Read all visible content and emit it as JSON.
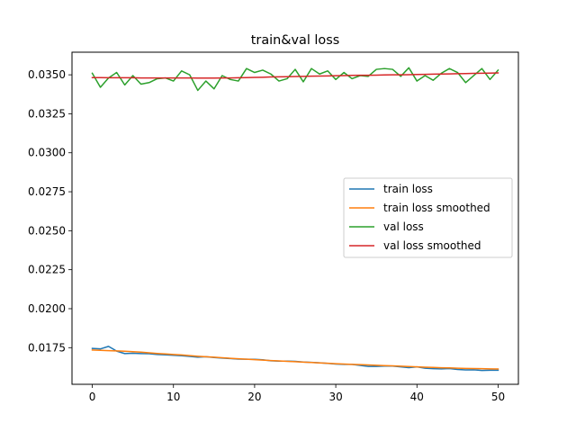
{
  "chart_data": {
    "type": "line",
    "title": "train&val loss",
    "xlabel": "",
    "ylabel": "",
    "xlim": [
      -2.5,
      52.5
    ],
    "ylim": [
      0.01515,
      0.03645
    ],
    "xticks": [
      0,
      10,
      20,
      30,
      40,
      50
    ],
    "xtick_labels": [
      "0",
      "10",
      "20",
      "30",
      "40",
      "50"
    ],
    "yticks": [
      0.0175,
      0.02,
      0.0225,
      0.025,
      0.0275,
      0.03,
      0.0325,
      0.035
    ],
    "ytick_labels": [
      "0.0175",
      "0.0200",
      "0.0225",
      "0.0250",
      "0.0275",
      "0.0300",
      "0.0325",
      "0.0350"
    ],
    "grid": false,
    "legend_position": "center-right",
    "x": [
      0,
      1,
      2,
      3,
      4,
      5,
      6,
      7,
      8,
      9,
      10,
      11,
      12,
      13,
      14,
      15,
      16,
      17,
      18,
      19,
      20,
      21,
      22,
      23,
      24,
      25,
      26,
      27,
      28,
      29,
      30,
      31,
      32,
      33,
      34,
      35,
      36,
      37,
      38,
      39,
      40,
      41,
      42,
      43,
      44,
      45,
      46,
      47,
      48,
      49,
      50
    ],
    "series": [
      {
        "name": "train loss",
        "color": "#1f77b4",
        "values": [
          0.01745,
          0.01742,
          0.01758,
          0.01728,
          0.01712,
          0.01714,
          0.01712,
          0.01711,
          0.01706,
          0.01704,
          0.01701,
          0.01698,
          0.01694,
          0.01689,
          0.01692,
          0.01687,
          0.01683,
          0.0168,
          0.01677,
          0.01676,
          0.01675,
          0.01672,
          0.01666,
          0.01664,
          0.01664,
          0.01662,
          0.01658,
          0.01656,
          0.01653,
          0.01649,
          0.01645,
          0.01643,
          0.01643,
          0.01636,
          0.0163,
          0.0163,
          0.01632,
          0.01632,
          0.01627,
          0.01622,
          0.01627,
          0.01618,
          0.01615,
          0.01614,
          0.01616,
          0.0161,
          0.01607,
          0.01608,
          0.01604,
          0.01605,
          0.01605
        ]
      },
      {
        "name": "train loss smoothed",
        "color": "#ff7f0e",
        "values": [
          0.01735,
          0.01733,
          0.01731,
          0.01729,
          0.01727,
          0.01724,
          0.01721,
          0.01717,
          0.01713,
          0.0171,
          0.01706,
          0.01703,
          0.01699,
          0.01695,
          0.01692,
          0.01689,
          0.01685,
          0.01682,
          0.01679,
          0.01676,
          0.01673,
          0.0167,
          0.01667,
          0.01665,
          0.01662,
          0.0166,
          0.01657,
          0.01655,
          0.01652,
          0.0165,
          0.01647,
          0.01645,
          0.01643,
          0.01641,
          0.01639,
          0.01637,
          0.01635,
          0.01633,
          0.01631,
          0.01629,
          0.01627,
          0.01625,
          0.01623,
          0.01621,
          0.0162,
          0.01618,
          0.01617,
          0.01616,
          0.01615,
          0.01614,
          0.01613
        ]
      },
      {
        "name": "val loss",
        "color": "#2ca02c",
        "values": [
          0.0351,
          0.0342,
          0.0348,
          0.03515,
          0.03435,
          0.03495,
          0.0344,
          0.0345,
          0.03475,
          0.0348,
          0.0346,
          0.03525,
          0.035,
          0.034,
          0.0346,
          0.0341,
          0.03495,
          0.0347,
          0.0346,
          0.0354,
          0.03515,
          0.0353,
          0.03505,
          0.0346,
          0.03475,
          0.03535,
          0.03455,
          0.0354,
          0.03505,
          0.03525,
          0.0347,
          0.03515,
          0.03475,
          0.03495,
          0.0349,
          0.03535,
          0.0354,
          0.03535,
          0.0349,
          0.03545,
          0.0346,
          0.03495,
          0.03465,
          0.0351,
          0.0354,
          0.03515,
          0.0345,
          0.03495,
          0.0354,
          0.0347,
          0.0353
        ]
      },
      {
        "name": "val loss smoothed",
        "color": "#d62728",
        "values": [
          0.03482,
          0.03482,
          0.03481,
          0.03481,
          0.03481,
          0.03481,
          0.0348,
          0.0348,
          0.0348,
          0.0348,
          0.0348,
          0.0348,
          0.0348,
          0.03479,
          0.03479,
          0.03479,
          0.0348,
          0.0348,
          0.03481,
          0.03482,
          0.03483,
          0.03484,
          0.03486,
          0.03487,
          0.03488,
          0.03489,
          0.0349,
          0.03491,
          0.03492,
          0.03493,
          0.03494,
          0.03495,
          0.03496,
          0.03497,
          0.03497,
          0.03498,
          0.03499,
          0.035,
          0.035,
          0.03501,
          0.03502,
          0.03503,
          0.03504,
          0.03505,
          0.03506,
          0.03507,
          0.03508,
          0.03509,
          0.0351,
          0.03511,
          0.03512
        ]
      }
    ]
  }
}
